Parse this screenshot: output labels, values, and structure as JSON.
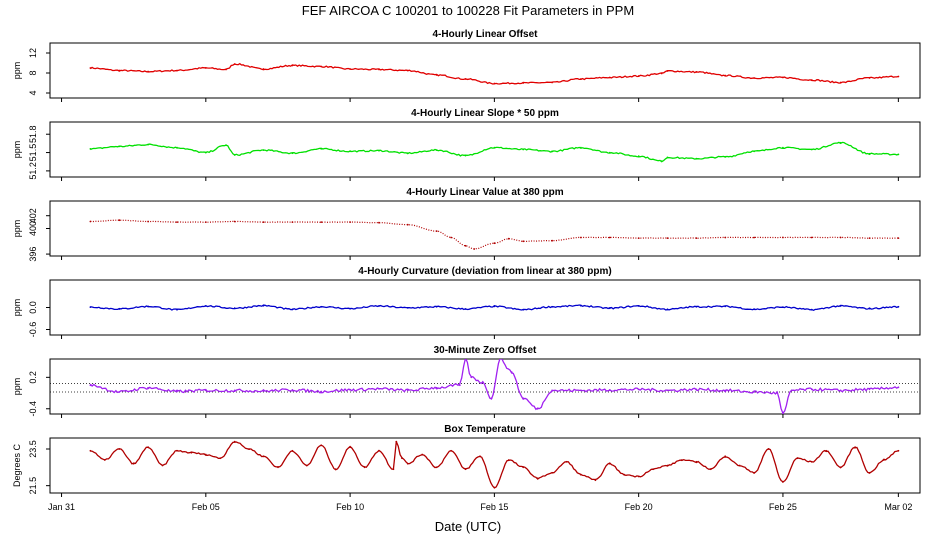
{
  "figure": {
    "title": "FEF   AIRCOA C   100201 to 100228   Fit Parameters in PPM",
    "xlabel": "Date (UTC)"
  },
  "x_axis": {
    "domain_days": [
      -0.4,
      29.75
    ],
    "ticks": [
      {
        "day": 0,
        "label": "Jan 31"
      },
      {
        "day": 5,
        "label": "Feb 05"
      },
      {
        "day": 10,
        "label": "Feb 10"
      },
      {
        "day": 15,
        "label": "Feb 15"
      },
      {
        "day": 20,
        "label": "Feb 20"
      },
      {
        "day": 25,
        "label": "Feb 25"
      },
      {
        "day": 29,
        "label": "Mar 02"
      }
    ]
  },
  "chart_data": [
    {
      "type": "line",
      "title": "4-Hourly Linear Offset",
      "ylabel": "ppm",
      "ylim": [
        3,
        14
      ],
      "yticks": [
        {
          "v": 4,
          "label": "4"
        },
        {
          "v": 8,
          "label": "8"
        },
        {
          "v": 12,
          "label": "12"
        }
      ],
      "color": "#e00000",
      "style": "line",
      "series": [
        {
          "name": "offset",
          "x": [
            1,
            2,
            3,
            4,
            5,
            5.7,
            6,
            7,
            8,
            9,
            10,
            11,
            12,
            13,
            14,
            15,
            16,
            17,
            18,
            19,
            20,
            20.8,
            21,
            22,
            23,
            24,
            25,
            26,
            27,
            28,
            29
          ],
          "values": [
            9.0,
            8.5,
            8.3,
            8.5,
            9.0,
            8.7,
            9.8,
            8.8,
            9.5,
            9.3,
            8.8,
            8.7,
            8.5,
            7.6,
            6.8,
            5.9,
            6.0,
            6.1,
            6.8,
            7.1,
            7.4,
            7.9,
            8.4,
            8.2,
            7.5,
            7.0,
            7.1,
            6.6,
            6.1,
            7.0,
            7.3
          ]
        }
      ]
    },
    {
      "type": "line",
      "title": "4-Hourly Linear Slope * 50 ppm",
      "ylabel": "ppm",
      "ylim": [
        51.1,
        52.0
      ],
      "yticks": [
        {
          "v": 51.2,
          "label": "51.2"
        },
        {
          "v": 51.5,
          "label": "51.5"
        },
        {
          "v": 51.8,
          "label": "51.8"
        }
      ],
      "color": "#00e000",
      "style": "line",
      "series": [
        {
          "name": "slope",
          "x": [
            1,
            2,
            3,
            4,
            5,
            5.7,
            6,
            7,
            8,
            9,
            10,
            11,
            12,
            13,
            14,
            15,
            16,
            17,
            18,
            19,
            20,
            20.8,
            21,
            22,
            23,
            24,
            25,
            26,
            27,
            28,
            29
          ],
          "values": [
            51.56,
            51.6,
            51.63,
            51.58,
            51.5,
            51.62,
            51.46,
            51.54,
            51.49,
            51.56,
            51.52,
            51.53,
            51.49,
            51.54,
            51.45,
            51.58,
            51.55,
            51.52,
            51.58,
            51.5,
            51.44,
            51.36,
            51.42,
            51.4,
            51.43,
            51.52,
            51.58,
            51.55,
            51.66,
            51.48,
            51.47
          ]
        }
      ]
    },
    {
      "type": "line",
      "title": "4-Hourly Linear Value at 380 ppm",
      "ylabel": "ppm",
      "ylim": [
        395.7,
        404.3
      ],
      "yticks": [
        {
          "v": 396,
          "label": "396"
        },
        {
          "v": 400,
          "label": "400"
        },
        {
          "v": 402,
          "label": "402"
        }
      ],
      "color": "#b00000",
      "style": "dots",
      "series": [
        {
          "name": "value",
          "x": [
            1,
            2,
            3,
            4,
            5,
            6,
            7,
            8,
            9,
            10,
            11,
            12,
            13,
            13.5,
            14,
            14.3,
            15,
            15.5,
            16,
            17,
            18,
            19,
            20,
            21,
            22,
            23,
            24,
            25,
            26,
            27,
            28,
            29
          ],
          "values": [
            401.1,
            401.3,
            401.1,
            401.0,
            401.0,
            401.1,
            401.0,
            401.0,
            401.0,
            401.0,
            400.9,
            400.6,
            399.6,
            398.6,
            397.3,
            396.8,
            397.7,
            398.4,
            398.0,
            398.1,
            398.6,
            398.6,
            398.5,
            398.5,
            398.5,
            398.6,
            398.6,
            398.6,
            398.6,
            398.6,
            398.5,
            398.5
          ]
        }
      ]
    },
    {
      "type": "line",
      "title": "4-Hourly Curvature (deviation from linear at 380 ppm)",
      "ylabel": "ppm",
      "ylim": [
        -0.75,
        0.75
      ],
      "yticks": [
        {
          "v": -0.6,
          "label": "-0.6"
        },
        {
          "v": 0.0,
          "label": "0.0"
        }
      ],
      "color": "#0000cc",
      "style": "line",
      "series": [
        {
          "name": "curvature",
          "x": [
            1,
            2,
            3,
            4,
            5,
            6,
            7,
            8,
            9,
            10,
            11,
            12,
            13,
            14,
            15,
            16,
            17,
            18,
            19,
            20,
            21,
            22,
            23,
            24,
            25,
            26,
            27,
            28,
            29
          ],
          "values": [
            0.01,
            -0.04,
            0.03,
            -0.06,
            0.04,
            -0.02,
            0.05,
            -0.05,
            0.02,
            -0.03,
            0.04,
            -0.01,
            0.02,
            -0.04,
            0.03,
            -0.06,
            0.02,
            0.05,
            -0.02,
            0.04,
            -0.05,
            0.02,
            0.03,
            -0.05,
            0.01,
            -0.06,
            0.04,
            -0.03,
            0.02
          ]
        }
      ]
    },
    {
      "type": "line",
      "title": "30-Minute Zero Offset",
      "ylabel": "ppm",
      "ylim": [
        -0.5,
        0.55
      ],
      "yticks": [
        {
          "v": -0.4,
          "label": "-0.4"
        },
        {
          "v": 0.2,
          "label": "0.2"
        }
      ],
      "hlines": [
        0.08,
        -0.08
      ],
      "color": "#a020f0",
      "style": "line",
      "series": [
        {
          "name": "zero",
          "x": [
            1,
            2,
            3,
            4,
            5,
            6,
            7,
            8,
            9,
            10,
            11,
            12,
            13,
            13.8,
            14.0,
            14.2,
            14.6,
            14.9,
            15.2,
            15.6,
            16,
            16.5,
            17,
            18,
            19,
            20,
            21,
            22,
            23,
            24,
            24.8,
            25.0,
            25.3,
            26,
            27,
            28,
            29
          ],
          "values": [
            0.05,
            -0.08,
            0.0,
            -0.07,
            -0.05,
            -0.05,
            -0.06,
            -0.04,
            -0.07,
            -0.04,
            -0.02,
            -0.05,
            0.0,
            0.05,
            0.55,
            0.2,
            0.1,
            -0.2,
            0.55,
            0.3,
            -0.2,
            -0.4,
            -0.05,
            -0.05,
            -0.04,
            -0.03,
            -0.05,
            -0.03,
            -0.05,
            -0.08,
            -0.1,
            -0.5,
            -0.05,
            -0.03,
            -0.05,
            -0.03,
            0.01
          ]
        }
      ]
    },
    {
      "type": "line",
      "title": "Box Temperature",
      "ylabel": "Degrees C",
      "ylim": [
        21.1,
        24.1
      ],
      "yticks": [
        {
          "v": 21.5,
          "label": "21.5"
        },
        {
          "v": 23.5,
          "label": "23.5"
        }
      ],
      "color": "#b00000",
      "style": "line",
      "series": [
        {
          "name": "temperature",
          "x": [
            1,
            1.5,
            2,
            2.5,
            3,
            3.5,
            4,
            4.5,
            5,
            5.5,
            6,
            6.5,
            7,
            7.5,
            8,
            8.5,
            9,
            9.5,
            10,
            10.5,
            11,
            11.5,
            11.6,
            11.8,
            12,
            12.5,
            13,
            13.5,
            14,
            14.5,
            15,
            15.5,
            16,
            16.5,
            17,
            17.5,
            18,
            18.5,
            19,
            19.5,
            20,
            20.5,
            21,
            21.5,
            22,
            22.5,
            23,
            23.5,
            24,
            24.5,
            25,
            25.5,
            26,
            26.5,
            27,
            27.5,
            28,
            28.5,
            29
          ],
          "values": [
            23.4,
            22.9,
            23.5,
            22.7,
            23.6,
            22.6,
            23.4,
            23.3,
            23.2,
            23.0,
            23.9,
            23.5,
            23.1,
            22.5,
            23.4,
            22.6,
            23.7,
            22.4,
            23.6,
            22.5,
            23.4,
            22.4,
            23.9,
            23.0,
            22.7,
            23.2,
            22.5,
            23.4,
            22.4,
            23.1,
            21.4,
            22.9,
            22.5,
            21.9,
            22.2,
            22.8,
            22.1,
            21.8,
            22.7,
            22.1,
            22.0,
            22.4,
            22.6,
            22.9,
            22.8,
            22.4,
            23.1,
            22.6,
            22.2,
            23.5,
            21.7,
            23.0,
            22.8,
            23.4,
            22.5,
            23.6,
            22.2,
            22.9,
            23.4
          ]
        }
      ]
    }
  ]
}
